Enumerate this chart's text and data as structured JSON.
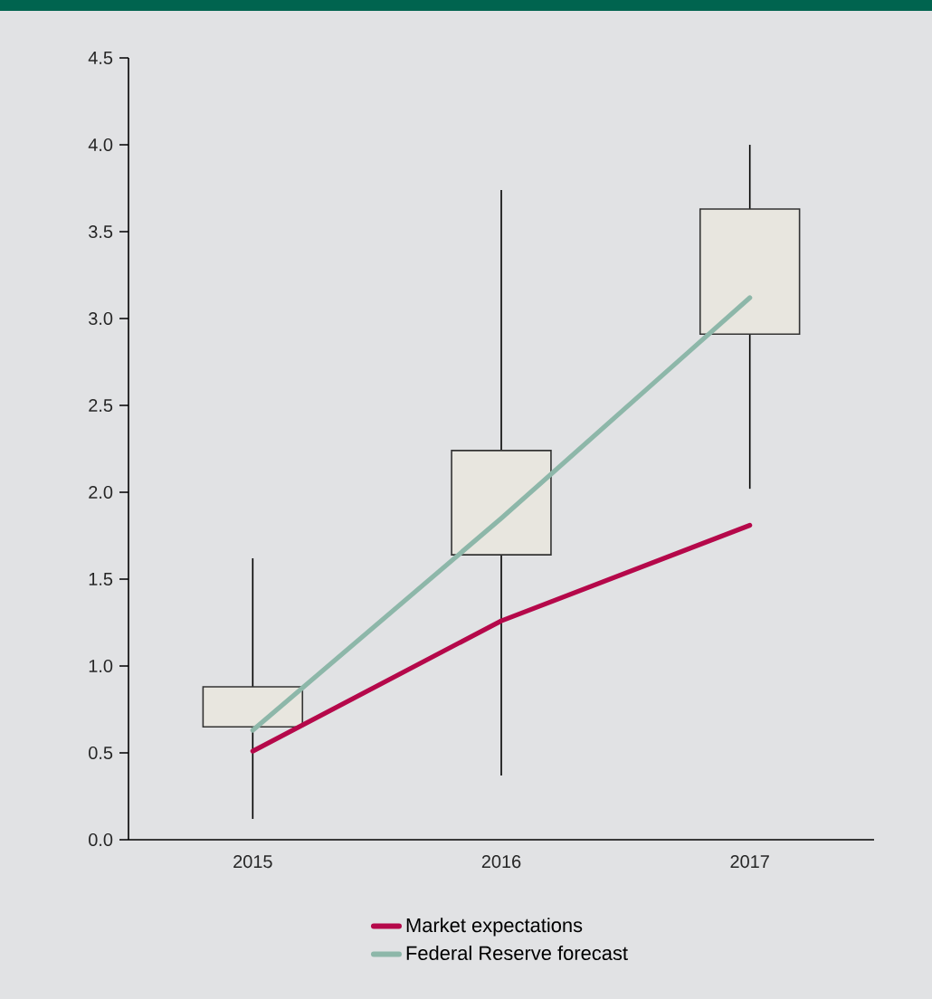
{
  "chart_data": {
    "type": "candlestick",
    "categories": [
      "2015",
      "2016",
      "2017"
    ],
    "ohlc": [
      [
        0.65,
        1.62,
        0.12,
        0.88
      ],
      [
        1.64,
        3.74,
        0.37,
        2.24
      ],
      [
        2.91,
        4.0,
        2.02,
        3.63
      ]
    ],
    "color": "#e8e6df",
    "series": [
      {
        "name": "Market expectations",
        "type": "line",
        "color": "#b5084a",
        "values": [
          0.51,
          1.26,
          1.81
        ]
      },
      {
        "name": "Federal Reserve forecast",
        "type": "line",
        "color": "#8db7a9",
        "values": [
          0.63,
          1.85,
          3.12
        ]
      }
    ],
    "ylim": [
      0,
      4.5
    ],
    "yticks": [
      {
        "value": 0,
        "label": "0.0"
      },
      0.5,
      {
        "value": 1,
        "label": "1.0"
      },
      1.5,
      {
        "value": 2,
        "label": "2.0"
      },
      2.5,
      {
        "value": 3,
        "label": "3.0"
      },
      3.5,
      {
        "value": 4,
        "label": "4.0"
      },
      4.5
    ],
    "legend": "bottom"
  }
}
